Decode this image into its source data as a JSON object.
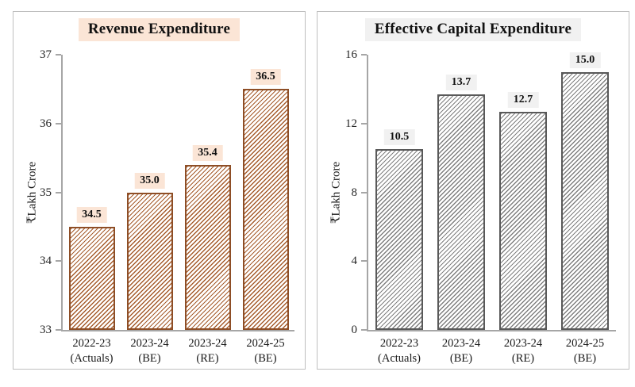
{
  "chart_data": [
    {
      "type": "bar",
      "title": "Revenue Expenditure",
      "ylabel": "₹Lakh Crore",
      "ylim": [
        33,
        37
      ],
      "yticks": [
        37,
        36,
        35,
        34,
        33
      ],
      "categories": [
        [
          "2022-23",
          "(Actuals)"
        ],
        [
          "2023-24",
          "(BE)"
        ],
        [
          "2023-24",
          "(RE)"
        ],
        [
          "2024-25",
          "(BE)"
        ]
      ],
      "values": [
        34.5,
        35.0,
        35.4,
        36.5
      ],
      "value_labels": [
        "34.5",
        "35.0",
        "35.4",
        "36.5"
      ],
      "grid": false,
      "legend": false,
      "style": {
        "hatch_color": "#a55b2b",
        "bar_border_color": "#8e4e26",
        "label_bg": "#fbe5d6",
        "title_bg": "#fbe5d6"
      }
    },
    {
      "type": "bar",
      "title": "Effective Capital Expenditure",
      "ylabel": "₹Lakh Crore",
      "ylim": [
        0,
        16
      ],
      "yticks": [
        16,
        12,
        8,
        4,
        0
      ],
      "categories": [
        [
          "2022-23",
          "(Actuals)"
        ],
        [
          "2023-24",
          "(BE)"
        ],
        [
          "2023-24",
          "(RE)"
        ],
        [
          "2024-25",
          "(BE)"
        ]
      ],
      "values": [
        10.5,
        13.7,
        12.7,
        15.0
      ],
      "value_labels": [
        "10.5",
        "13.7",
        "12.7",
        "15.0"
      ],
      "grid": false,
      "legend": false,
      "style": {
        "hatch_color": "#7f7f7f",
        "bar_border_color": "#595959",
        "label_bg": "#f1f1f1",
        "title_bg": "#f1f1f1"
      }
    }
  ],
  "style": {
    "axis_color": "#a6a6a6",
    "text_color": "#1a1a1a",
    "panel_border": "#bfbfbf",
    "background": "#ffffff"
  }
}
